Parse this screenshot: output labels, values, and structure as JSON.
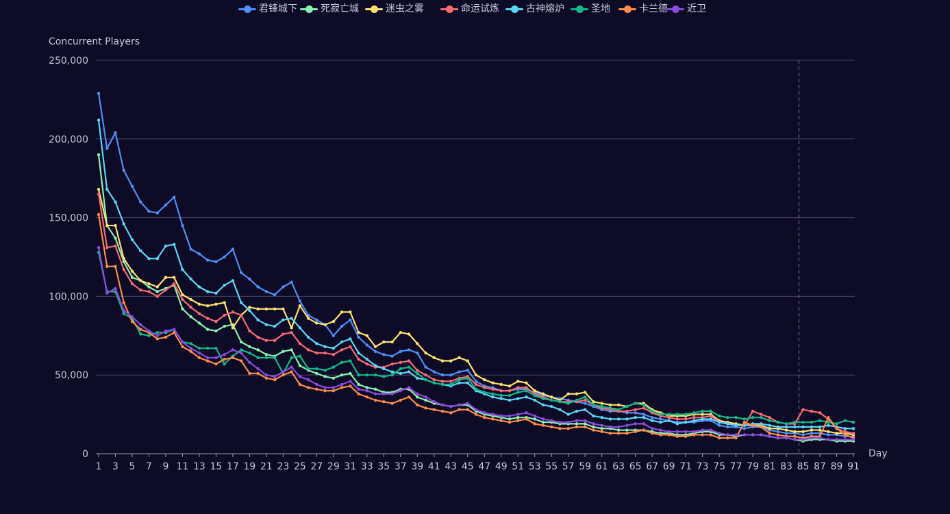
{
  "chart_data": {
    "type": "line",
    "title": "",
    "xlabel": "Day",
    "ylabel": "Concurrent Players",
    "ylim": [
      0,
      250000
    ],
    "y_ticks": [
      "0",
      "50,000",
      "100,000",
      "150,000",
      "200,000",
      "250,000"
    ],
    "x": [
      1,
      2,
      3,
      4,
      5,
      6,
      7,
      8,
      9,
      10,
      11,
      12,
      13,
      14,
      15,
      16,
      17,
      18,
      19,
      20,
      21,
      22,
      23,
      24,
      25,
      26,
      27,
      28,
      29,
      30,
      31,
      32,
      33,
      34,
      35,
      36,
      37,
      38,
      39,
      40,
      41,
      42,
      43,
      44,
      45,
      46,
      47,
      48,
      49,
      50,
      51,
      52,
      53,
      54,
      55,
      56,
      57,
      58,
      59,
      60,
      61,
      62,
      63,
      64,
      65,
      66,
      67,
      68,
      69,
      70,
      71,
      72,
      73,
      74,
      75,
      76,
      77,
      78,
      79,
      80,
      81,
      82,
      83,
      84,
      85,
      86,
      87,
      88,
      89,
      90,
      91
    ],
    "x_tick_labels": [
      "1",
      "3",
      "5",
      "7",
      "9",
      "11",
      "13",
      "15",
      "17",
      "19",
      "21",
      "23",
      "25",
      "27",
      "29",
      "31",
      "33",
      "35",
      "37",
      "39",
      "41",
      "43",
      "45",
      "47",
      "49",
      "51",
      "53",
      "55",
      "57",
      "59",
      "61",
      "63",
      "65",
      "67",
      "69",
      "71",
      "73",
      "75",
      "77",
      "79",
      "81",
      "83",
      "85",
      "87",
      "89",
      "91"
    ],
    "marker_line_x": 84.5,
    "grid": true,
    "legend_position": "top-center",
    "series": [
      {
        "name": "君锋城下",
        "color": "#4f8ff7",
        "values": [
          229000,
          194000,
          204000,
          180000,
          170000,
          160000,
          154000,
          153000,
          158000,
          163000,
          145000,
          130000,
          127000,
          123000,
          122000,
          125000,
          130000,
          115000,
          111000,
          106000,
          103000,
          101000,
          106000,
          109000,
          97000,
          88000,
          85000,
          82000,
          75000,
          81000,
          85000,
          74000,
          69000,
          65000,
          63000,
          62000,
          65000,
          66000,
          64000,
          55000,
          52000,
          50000,
          50000,
          52000,
          53000,
          46000,
          43000,
          42000,
          40000,
          40000,
          41000,
          41000,
          39000,
          37000,
          36000,
          35000,
          34000,
          33000,
          32000,
          30000,
          28000,
          27000,
          27000,
          26000,
          26000,
          25000,
          23000,
          22000,
          21000,
          20000,
          20000,
          20000,
          21000,
          21000,
          18000,
          17000,
          17000,
          16000,
          17000,
          17000,
          15000,
          14000,
          13000,
          13000,
          12000,
          13000,
          13000,
          12000,
          12000,
          11000,
          11000
        ]
      },
      {
        "name": "死寂亡城",
        "color": "#8bf2b0",
        "values": [
          190000,
          145000,
          137000,
          122000,
          112000,
          110000,
          106000,
          103000,
          105000,
          107000,
          92000,
          87000,
          83000,
          79000,
          78000,
          81000,
          82000,
          71000,
          68000,
          66000,
          63000,
          62000,
          65000,
          66000,
          56000,
          53000,
          51000,
          49000,
          48000,
          50000,
          51000,
          44000,
          42000,
          41000,
          39000,
          39000,
          41000,
          41000,
          36000,
          34000,
          32000,
          31000,
          30000,
          31000,
          31000,
          27000,
          25000,
          24000,
          23000,
          22000,
          23000,
          23000,
          22000,
          20000,
          20000,
          19000,
          19000,
          19000,
          19000,
          17000,
          16000,
          16000,
          15000,
          15000,
          15000,
          15000,
          14000,
          13000,
          13000,
          12000,
          12000,
          13000,
          14000,
          14000,
          12000,
          12000,
          11000,
          12000,
          12000,
          12000,
          11000,
          10000,
          10000,
          9000,
          8000,
          9000,
          9000,
          9000,
          8000,
          8000,
          8000
        ]
      },
      {
        "name": "迷虫之雾",
        "color": "#fde172",
        "values": [
          168000,
          145000,
          145000,
          124000,
          116000,
          110000,
          108000,
          106000,
          112000,
          112000,
          101000,
          98000,
          95000,
          94000,
          95000,
          96000,
          80000,
          88000,
          93000,
          92000,
          92000,
          92000,
          92000,
          80000,
          94000,
          86000,
          83000,
          82000,
          84000,
          90000,
          90000,
          77000,
          75000,
          68000,
          71000,
          71000,
          77000,
          76000,
          70000,
          64000,
          61000,
          59000,
          59000,
          61000,
          59000,
          50000,
          47000,
          45000,
          44000,
          43000,
          46000,
          45000,
          40000,
          38000,
          36000,
          34000,
          38000,
          38000,
          39000,
          33000,
          32000,
          31000,
          31000,
          30000,
          32000,
          32000,
          28000,
          26000,
          24000,
          24000,
          24000,
          25000,
          25000,
          25000,
          21000,
          20000,
          19000,
          18000,
          18000,
          18000,
          16000,
          16000,
          15000,
          14000,
          14000,
          15000,
          15000,
          14000,
          13000,
          13000,
          12000
        ]
      },
      {
        "name": "命运试炼",
        "color": "#f86b73",
        "values": [
          165000,
          131000,
          132000,
          117000,
          108000,
          104000,
          103000,
          100000,
          104000,
          108000,
          98000,
          93000,
          89000,
          86000,
          84000,
          88000,
          90000,
          88000,
          78000,
          74000,
          72000,
          72000,
          76000,
          77000,
          70000,
          66000,
          64000,
          64000,
          63000,
          66000,
          68000,
          60000,
          57000,
          55000,
          55000,
          57000,
          58000,
          59000,
          53000,
          50000,
          47000,
          46000,
          46000,
          48000,
          49000,
          44000,
          42000,
          41000,
          40000,
          40000,
          42000,
          42000,
          38000,
          36000,
          34000,
          33000,
          33000,
          33000,
          34000,
          31000,
          29000,
          28000,
          27000,
          27000,
          28000,
          29000,
          26000,
          24000,
          23000,
          22000,
          22000,
          23000,
          23000,
          24000,
          20000,
          19000,
          18000,
          18000,
          27000,
          25000,
          23000,
          20000,
          19000,
          19000,
          28000,
          27000,
          26000,
          22000,
          16000,
          14000,
          13000
        ]
      },
      {
        "name": "古神熔炉",
        "color": "#5ad6f8",
        "values": [
          212000,
          168000,
          160000,
          146000,
          136000,
          129000,
          124000,
          124000,
          132000,
          133000,
          117000,
          111000,
          106000,
          103000,
          102000,
          107000,
          110000,
          96000,
          91000,
          85000,
          82000,
          81000,
          85000,
          86000,
          80000,
          74000,
          70000,
          68000,
          67000,
          71000,
          73000,
          64000,
          60000,
          56000,
          54000,
          52000,
          51000,
          52000,
          48000,
          47000,
          45000,
          44000,
          43000,
          45000,
          45000,
          40000,
          38000,
          36000,
          35000,
          34000,
          35000,
          36000,
          34000,
          31000,
          30000,
          28000,
          25000,
          27000,
          28000,
          24000,
          23000,
          22000,
          22000,
          22000,
          23000,
          23000,
          21000,
          20000,
          21000,
          19000,
          20000,
          21000,
          22000,
          22000,
          20000,
          19000,
          18000,
          18000,
          19000,
          19000,
          18000,
          17000,
          17000,
          17000,
          17000,
          17000,
          17000,
          18000,
          17000,
          16000,
          16000
        ]
      },
      {
        "name": "圣地",
        "color": "#11b987",
        "values": [
          128000,
          103000,
          103000,
          89000,
          86000,
          76000,
          75000,
          77000,
          77000,
          79000,
          71000,
          70000,
          67000,
          67000,
          67000,
          57000,
          62000,
          66000,
          64000,
          61000,
          61000,
          61000,
          51000,
          61000,
          62000,
          54000,
          54000,
          53000,
          55000,
          58000,
          59000,
          50000,
          50000,
          50000,
          49000,
          50000,
          54000,
          55000,
          51000,
          47000,
          45000,
          44000,
          44000,
          47000,
          48000,
          41000,
          39000,
          38000,
          37000,
          37000,
          39000,
          40000,
          37000,
          35000,
          34000,
          33000,
          32000,
          34000,
          36000,
          31000,
          30000,
          29000,
          28000,
          30000,
          32000,
          31000,
          27000,
          25000,
          25000,
          25000,
          25000,
          26000,
          27000,
          27000,
          24000,
          23000,
          23000,
          22000,
          23000,
          23000,
          21000,
          20000,
          19000,
          20000,
          20000,
          20000,
          21000,
          20000,
          19000,
          21000,
          20000
        ]
      },
      {
        "name": "卡兰德",
        "color": "#fd8b4c",
        "values": [
          152000,
          119000,
          119000,
          96000,
          84000,
          79000,
          77000,
          73000,
          74000,
          77000,
          68000,
          65000,
          61000,
          59000,
          57000,
          60000,
          61000,
          59000,
          51000,
          51000,
          48000,
          47000,
          50000,
          52000,
          44000,
          42000,
          41000,
          40000,
          40000,
          42000,
          43000,
          38000,
          36000,
          34000,
          33000,
          32000,
          34000,
          36000,
          31000,
          29000,
          28000,
          27000,
          26000,
          28000,
          28000,
          25000,
          23000,
          22000,
          21000,
          20000,
          21000,
          22000,
          19000,
          18000,
          17000,
          16000,
          16000,
          17000,
          17000,
          15000,
          14000,
          13000,
          13000,
          13000,
          14000,
          15000,
          13000,
          12000,
          12000,
          11000,
          11000,
          12000,
          12000,
          12000,
          10000,
          10000,
          10000,
          20000,
          18000,
          17000,
          13000,
          12000,
          11000,
          11000,
          10000,
          11000,
          11000,
          23000,
          16000,
          12000,
          10000
        ]
      },
      {
        "name": "近卫",
        "color": "#8c4ade",
        "values": [
          131000,
          102000,
          105000,
          91000,
          87000,
          82000,
          78000,
          75000,
          78000,
          79000,
          71000,
          67000,
          64000,
          61000,
          61000,
          63000,
          66000,
          64000,
          58000,
          54000,
          50000,
          49000,
          52000,
          55000,
          49000,
          47000,
          44000,
          42000,
          42000,
          44000,
          46000,
          41000,
          40000,
          38000,
          38000,
          38000,
          40000,
          42000,
          38000,
          36000,
          33000,
          31000,
          30000,
          31000,
          32000,
          28000,
          26000,
          25000,
          24000,
          24000,
          25000,
          26000,
          24000,
          22000,
          21000,
          20000,
          20000,
          21000,
          21000,
          19000,
          18000,
          17000,
          17000,
          18000,
          19000,
          19000,
          16000,
          15000,
          14000,
          14000,
          14000,
          14000,
          15000,
          15000,
          13000,
          12000,
          12000,
          12000,
          12000,
          12000,
          11000,
          10000,
          10000,
          9000,
          9000,
          10000,
          10000,
          9000,
          9000,
          9000,
          9000
        ]
      }
    ]
  }
}
